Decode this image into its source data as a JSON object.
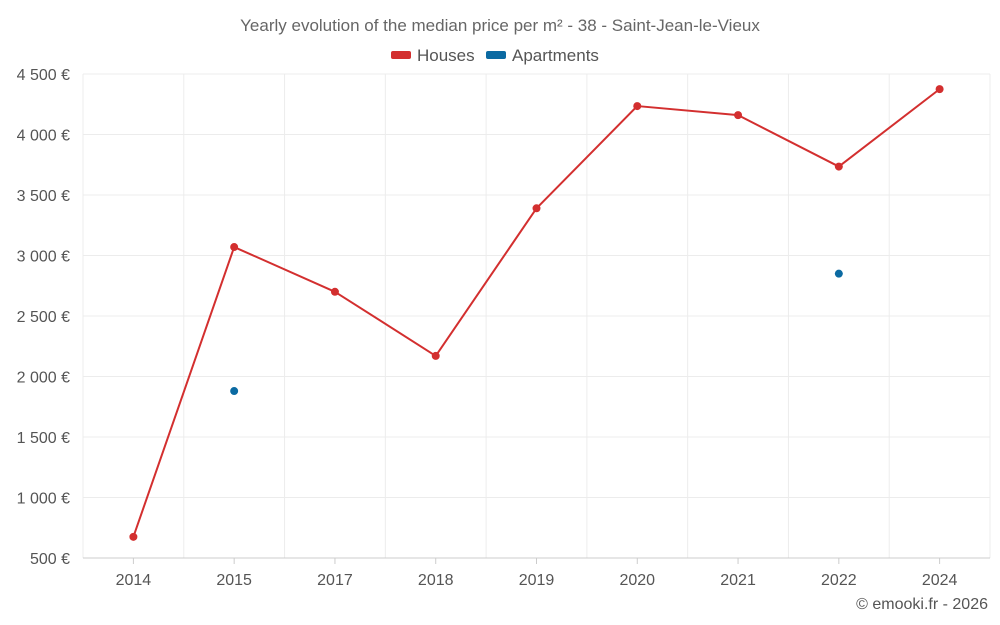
{
  "chart_data": {
    "type": "line",
    "title": "Yearly evolution of the median price per m² - 38 - Saint-Jean-le-Vieux",
    "categories": [
      "2014",
      "2015",
      "2017",
      "2018",
      "2019",
      "2020",
      "2021",
      "2022",
      "2024"
    ],
    "series": [
      {
        "name": "Houses",
        "color": "#d32f2f",
        "values": [
          675,
          3070,
          2700,
          2170,
          3390,
          4235,
          4160,
          3735,
          4375
        ]
      },
      {
        "name": "Apartments",
        "color": "#0b6aa2",
        "values": [
          null,
          1880,
          null,
          null,
          null,
          null,
          null,
          2850,
          null
        ]
      }
    ],
    "ylim": [
      500,
      4500
    ],
    "yticks": [
      500,
      1000,
      1500,
      2000,
      2500,
      3000,
      3500,
      4000,
      4500
    ],
    "ytick_labels": [
      "500 €",
      "1 000 €",
      "1 500 €",
      "2 000 €",
      "2 500 €",
      "3 000 €",
      "3 500 €",
      "4 000 €",
      "4 500 €"
    ],
    "xlabel": "",
    "ylabel": "",
    "grid": true,
    "legend_position": "top-center"
  },
  "credit": "© emooki.fr - 2026"
}
